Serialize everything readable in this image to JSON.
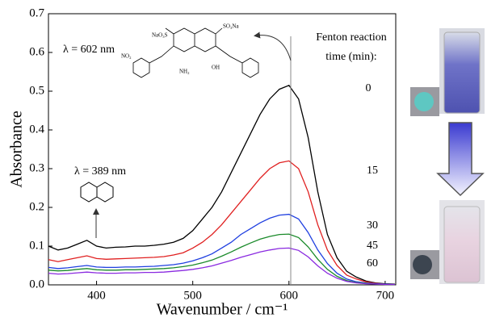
{
  "chart_data": {
    "type": "line",
    "x_label": "Wavenumber / cm⁻¹",
    "y_label": "Absorbance",
    "legend_title": [
      "Fenton reaction",
      "time (min):"
    ],
    "annotations": [
      "λ = 602 nm",
      "λ = 389 nm",
      "NaO₃S",
      "SO₃Na",
      "NH₂",
      "OH",
      "NO₂"
    ],
    "x": [
      350,
      360,
      370,
      380,
      390,
      400,
      410,
      420,
      430,
      440,
      450,
      460,
      470,
      480,
      490,
      500,
      510,
      520,
      530,
      540,
      550,
      560,
      570,
      580,
      590,
      600,
      610,
      620,
      630,
      640,
      650,
      660,
      670,
      680,
      690,
      700,
      710
    ],
    "series": [
      {
        "name": "0",
        "color": "#000000",
        "values": [
          0.1,
          0.09,
          0.095,
          0.105,
          0.115,
          0.1,
          0.095,
          0.097,
          0.098,
          0.1,
          0.1,
          0.102,
          0.105,
          0.11,
          0.12,
          0.14,
          0.17,
          0.2,
          0.24,
          0.29,
          0.34,
          0.39,
          0.44,
          0.48,
          0.505,
          0.515,
          0.48,
          0.38,
          0.24,
          0.13,
          0.07,
          0.035,
          0.02,
          0.01,
          0.005,
          0.003,
          0.002
        ]
      },
      {
        "name": "15",
        "color": "#e02020",
        "values": [
          0.065,
          0.06,
          0.065,
          0.07,
          0.075,
          0.068,
          0.066,
          0.067,
          0.068,
          0.069,
          0.07,
          0.071,
          0.073,
          0.077,
          0.083,
          0.095,
          0.11,
          0.13,
          0.155,
          0.185,
          0.215,
          0.245,
          0.275,
          0.3,
          0.315,
          0.32,
          0.3,
          0.24,
          0.155,
          0.09,
          0.05,
          0.025,
          0.015,
          0.008,
          0.004,
          0.002,
          0.001
        ]
      },
      {
        "name": "30",
        "color": "#1f3fe0",
        "values": [
          0.045,
          0.042,
          0.044,
          0.047,
          0.05,
          0.046,
          0.045,
          0.045,
          0.046,
          0.046,
          0.047,
          0.048,
          0.05,
          0.052,
          0.056,
          0.062,
          0.07,
          0.08,
          0.095,
          0.11,
          0.13,
          0.145,
          0.16,
          0.172,
          0.18,
          0.182,
          0.17,
          0.135,
          0.09,
          0.055,
          0.03,
          0.015,
          0.008,
          0.005,
          0.003,
          0.002,
          0.001
        ]
      },
      {
        "name": "45",
        "color": "#1a8a2a",
        "values": [
          0.038,
          0.036,
          0.037,
          0.04,
          0.042,
          0.039,
          0.038,
          0.038,
          0.039,
          0.039,
          0.04,
          0.041,
          0.042,
          0.044,
          0.047,
          0.051,
          0.057,
          0.064,
          0.074,
          0.085,
          0.097,
          0.108,
          0.118,
          0.125,
          0.13,
          0.131,
          0.122,
          0.098,
          0.066,
          0.04,
          0.022,
          0.011,
          0.006,
          0.004,
          0.002,
          0.001,
          0.001
        ]
      },
      {
        "name": "60",
        "color": "#8a2ae0",
        "values": [
          0.03,
          0.028,
          0.029,
          0.031,
          0.033,
          0.031,
          0.03,
          0.03,
          0.031,
          0.031,
          0.032,
          0.032,
          0.033,
          0.035,
          0.037,
          0.04,
          0.044,
          0.049,
          0.056,
          0.063,
          0.071,
          0.078,
          0.085,
          0.09,
          0.094,
          0.095,
          0.089,
          0.072,
          0.049,
          0.03,
          0.017,
          0.009,
          0.005,
          0.003,
          0.002,
          0.001,
          0.001
        ]
      }
    ],
    "xlim": [
      350,
      711
    ],
    "ylim": [
      0,
      0.7
    ],
    "xticks": [
      400,
      500,
      600,
      700
    ],
    "yticks": [
      {
        "value": 0,
        "label": "0.0"
      },
      0.1,
      0.2,
      0.3,
      0.4,
      0.5,
      0.6,
      0.7
    ]
  }
}
